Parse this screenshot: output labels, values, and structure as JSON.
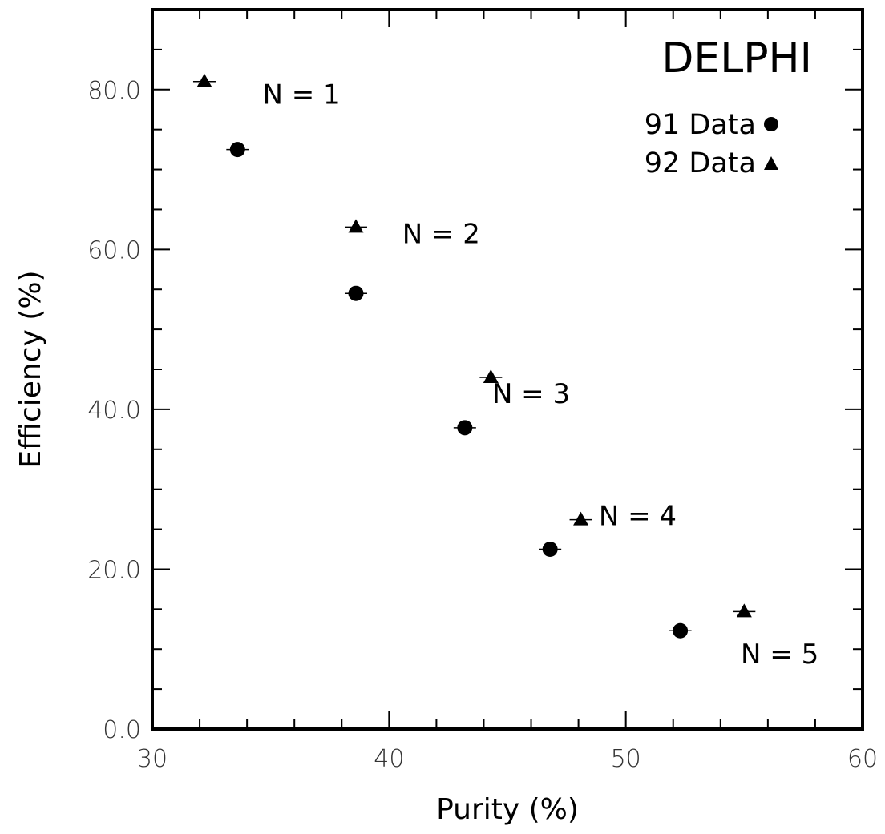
{
  "chart_data": {
    "type": "scatter",
    "title": "",
    "experiment_label": "DELPHI",
    "xlabel": "Purity (%)",
    "ylabel": "Efficiency (%)",
    "xlim": [
      30,
      60
    ],
    "ylim": [
      0,
      90
    ],
    "x_ticks": [
      30,
      40,
      50,
      60
    ],
    "x_tick_labels": [
      "30",
      "40",
      "50",
      "60"
    ],
    "y_ticks": [
      0,
      20,
      40,
      60,
      80
    ],
    "y_tick_labels": [
      "0.0",
      "20.0",
      "40.0",
      "60.0",
      "80.0"
    ],
    "grid": false,
    "legend_position": "top-right",
    "series": [
      {
        "name": "91 Data",
        "marker": "circle",
        "points": [
          {
            "x": 33.6,
            "y": 72.5
          },
          {
            "x": 38.6,
            "y": 54.5
          },
          {
            "x": 43.2,
            "y": 37.7
          },
          {
            "x": 46.8,
            "y": 22.5
          },
          {
            "x": 52.3,
            "y": 12.3
          }
        ]
      },
      {
        "name": "92 Data",
        "marker": "triangle",
        "points": [
          {
            "x": 32.2,
            "y": 81.0
          },
          {
            "x": 38.6,
            "y": 62.8
          },
          {
            "x": 44.3,
            "y": 44.0
          },
          {
            "x": 48.1,
            "y": 26.2
          },
          {
            "x": 55.0,
            "y": 14.7
          }
        ]
      }
    ],
    "annotations": [
      {
        "text": "N = 1",
        "x": 36.3,
        "y": 78.2
      },
      {
        "text": "N = 2",
        "x": 42.2,
        "y": 60.8
      },
      {
        "text": "N = 3",
        "x": 46.0,
        "y": 40.8
      },
      {
        "text": "N = 4",
        "x": 50.5,
        "y": 25.5
      },
      {
        "text": "N = 5",
        "x": 56.5,
        "y": 8.2
      }
    ]
  }
}
